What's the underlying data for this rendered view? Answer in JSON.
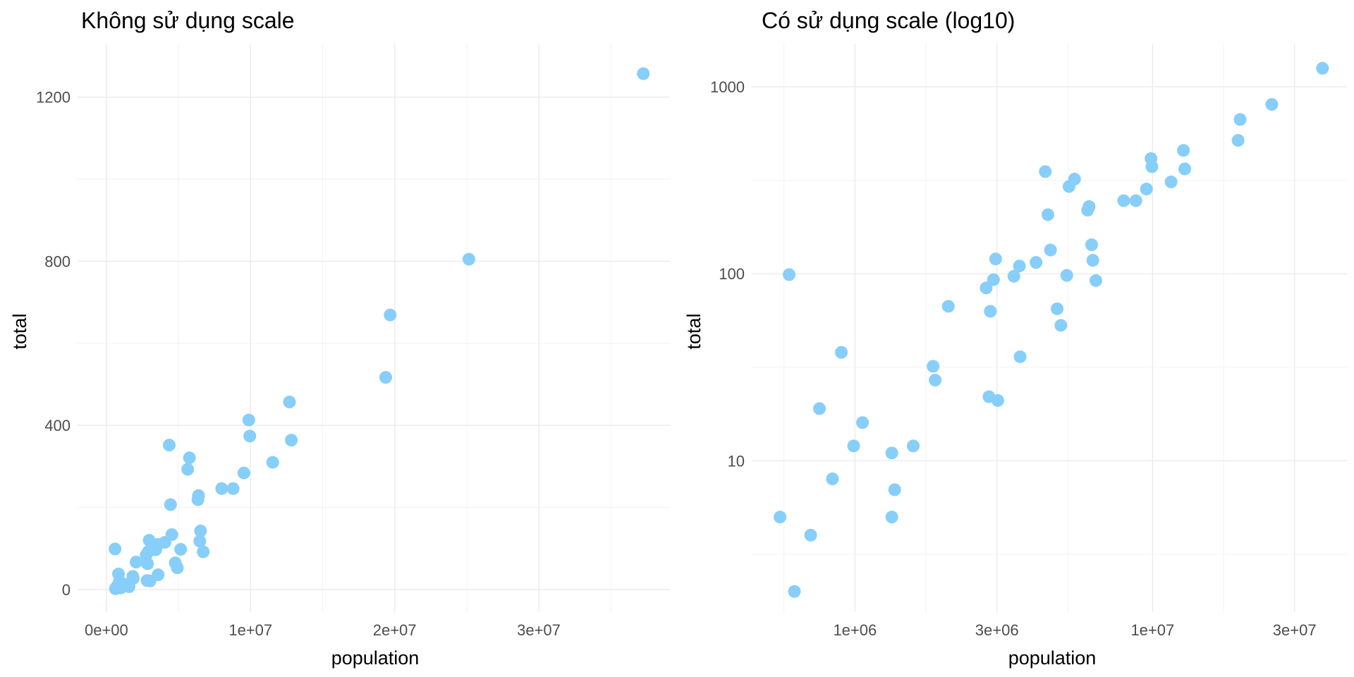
{
  "chart_data": [
    {
      "type": "scatter",
      "title": "Không sử dụng scale",
      "xlabel": "population",
      "ylabel": "total",
      "xscale": "linear",
      "yscale": "linear",
      "xlim": [
        -2000000,
        39100000
      ],
      "ylim": [
        -55,
        1330
      ],
      "xticks": [
        0,
        10000000,
        20000000,
        30000000
      ],
      "xtick_labels": [
        "0e+00",
        "1e+07",
        "2e+07",
        "3e+07"
      ],
      "yticks": [
        0,
        400,
        800,
        1200
      ],
      "ytick_labels": [
        "0",
        "400",
        "800",
        "1200"
      ],
      "grid": true,
      "legend": "none",
      "point_color": "#87cefa",
      "points": [
        [
          626000,
          2
        ],
        [
          601000,
          99
        ],
        [
          990000,
          4
        ],
        [
          1330000,
          12
        ],
        [
          1060000,
          16
        ],
        [
          890000,
          19
        ],
        [
          720000,
          7
        ],
        [
          1570000,
          7
        ],
        [
          840000,
          38
        ],
        [
          1830000,
          32
        ],
        [
          1860000,
          27
        ],
        [
          2060000,
          67
        ],
        [
          2760000,
          84
        ],
        [
          2850000,
          63
        ],
        [
          2920000,
          93
        ],
        [
          2970000,
          120
        ],
        [
          2820000,
          22
        ],
        [
          3020000,
          21
        ],
        [
          3420000,
          97
        ],
        [
          3570000,
          110
        ],
        [
          3590000,
          36
        ],
        [
          4060000,
          115
        ],
        [
          4360000,
          352
        ],
        [
          4450000,
          207
        ],
        [
          4540000,
          134
        ],
        [
          4780000,
          65
        ],
        [
          4920000,
          53
        ],
        [
          5150000,
          98
        ],
        [
          5640000,
          293
        ],
        [
          5760000,
          321
        ],
        [
          6350000,
          219
        ],
        [
          6390000,
          229
        ],
        [
          6480000,
          118
        ],
        [
          6530000,
          143
        ],
        [
          6720000,
          92
        ],
        [
          8000000,
          246
        ],
        [
          8790000,
          246
        ],
        [
          9540000,
          284
        ],
        [
          9880000,
          413
        ],
        [
          9950000,
          374
        ],
        [
          11540000,
          310
        ],
        [
          12700000,
          457
        ],
        [
          12830000,
          364
        ],
        [
          19380000,
          517
        ],
        [
          19690000,
          669
        ],
        [
          25150000,
          805
        ],
        [
          37250000,
          1257
        ]
      ]
    },
    {
      "type": "scatter",
      "title": "Có sử dụng scale (log10)",
      "xlabel": "population",
      "ylabel": "total",
      "xscale": "log10",
      "yscale": "log10",
      "xlim": [
        450000,
        45000000
      ],
      "ylim": [
        1.55,
        1700
      ],
      "xticks": [
        1000000,
        3000000,
        10000000,
        30000000
      ],
      "xtick_labels": [
        "1e+06",
        "3e+06",
        "1e+07",
        "3e+07"
      ],
      "yticks": [
        10,
        100,
        1000
      ],
      "ytick_labels": [
        "10",
        "100",
        "1000"
      ],
      "grid": true,
      "legend": "none",
      "point_color": "#87cefa",
      "points": [
        [
          560000,
          5
        ],
        [
          601000,
          99
        ],
        [
          626000,
          2
        ],
        [
          710000,
          4
        ],
        [
          760000,
          19
        ],
        [
          900000,
          38
        ],
        [
          990000,
          12
        ],
        [
          1060000,
          16
        ],
        [
          1330000,
          11
        ],
        [
          1330000,
          5
        ],
        [
          1360000,
          7
        ],
        [
          840000,
          8
        ],
        [
          1570000,
          12
        ],
        [
          1830000,
          32
        ],
        [
          1860000,
          27
        ],
        [
          2060000,
          67
        ],
        [
          2760000,
          84
        ],
        [
          2820000,
          22
        ],
        [
          2850000,
          63
        ],
        [
          2920000,
          93
        ],
        [
          2970000,
          120
        ],
        [
          3020000,
          21
        ],
        [
          3420000,
          97
        ],
        [
          3570000,
          110
        ],
        [
          3590000,
          36
        ],
        [
          4060000,
          115
        ],
        [
          4360000,
          352
        ],
        [
          4450000,
          207
        ],
        [
          4540000,
          134
        ],
        [
          4780000,
          65
        ],
        [
          4920000,
          53
        ],
        [
          5150000,
          98
        ],
        [
          5240000,
          293
        ],
        [
          5470000,
          321
        ],
        [
          6050000,
          219
        ],
        [
          6120000,
          229
        ],
        [
          6300000,
          118
        ],
        [
          6240000,
          143
        ],
        [
          6450000,
          92
        ],
        [
          8000000,
          246
        ],
        [
          8790000,
          246
        ],
        [
          9540000,
          284
        ],
        [
          9880000,
          413
        ],
        [
          9950000,
          374
        ],
        [
          11540000,
          310
        ],
        [
          12700000,
          457
        ],
        [
          12830000,
          364
        ],
        [
          19380000,
          517
        ],
        [
          19690000,
          669
        ],
        [
          25150000,
          805
        ],
        [
          37250000,
          1257
        ]
      ]
    }
  ]
}
